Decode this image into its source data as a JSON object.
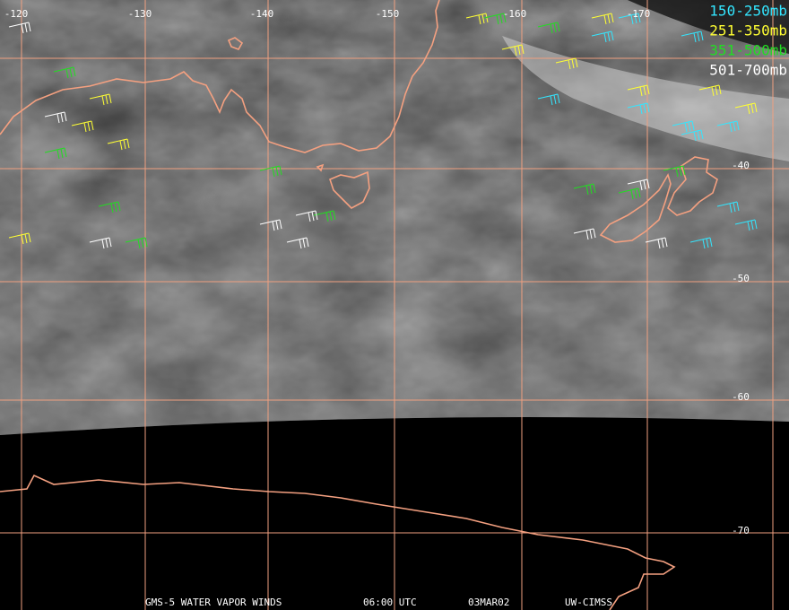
{
  "map": {
    "lon_labels": [
      "-120",
      "-130",
      "-140",
      "-150",
      "-160",
      "-170"
    ],
    "lat_labels": [
      "-40",
      "-50",
      "-60",
      "-70"
    ],
    "legend": [
      {
        "label": "150-250mb",
        "color": "#33e6ff"
      },
      {
        "label": "251-350mb",
        "color": "#ffff33"
      },
      {
        "label": "351-500mb",
        "color": "#22dd22"
      },
      {
        "label": "501-700mb",
        "color": "#ffffff"
      }
    ],
    "footer": [
      "GMS-5 WATER VAPOR WINDS",
      "06:00 UTC",
      "03MAR02",
      "UW-CIMSS"
    ]
  }
}
